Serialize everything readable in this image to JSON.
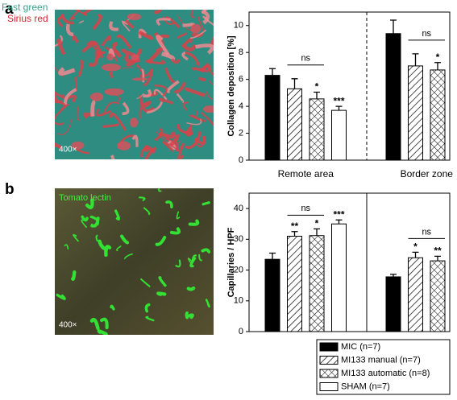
{
  "panels": [
    {
      "label": "a",
      "image_labels": [
        "Fast green",
        "Sirius red"
      ],
      "magnification": "400×"
    },
    {
      "label": "b",
      "image_labels": [
        "Tomato lectin"
      ],
      "magnification": "400×"
    }
  ],
  "chart_data": [
    {
      "type": "bar",
      "y_label": "Collagen deposition [%]",
      "categories": [
        "Remote area",
        "Border zone"
      ],
      "ylim": [
        0,
        11
      ],
      "yticks": [
        0,
        2,
        4,
        6,
        8,
        10
      ],
      "group_annotations": [
        "ns",
        "ns"
      ],
      "series": [
        {
          "color": "#000000",
          "pattern": "solid",
          "values": [
            6.3,
            9.4
          ],
          "errors": [
            0.5,
            1.0
          ],
          "significance": [
            null,
            null
          ]
        },
        {
          "color": "#000000",
          "pattern": "diagonal",
          "values": [
            5.3,
            7.0
          ],
          "errors": [
            0.75,
            0.9
          ],
          "significance": [
            null,
            null
          ]
        },
        {
          "color": "#000000",
          "pattern": "crosshatch",
          "values": [
            4.55,
            6.7
          ],
          "errors": [
            0.5,
            0.55
          ],
          "significance": [
            "*",
            "*"
          ]
        },
        {
          "color": "#000000",
          "pattern": "empty",
          "values": [
            3.7,
            null
          ],
          "errors": [
            0.3,
            null
          ],
          "significance": [
            "***",
            null
          ]
        }
      ]
    },
    {
      "type": "bar",
      "y_label": "Capillaries / HPF",
      "categories": [
        null,
        null
      ],
      "ylim": [
        0,
        45
      ],
      "yticks": [
        0,
        10,
        20,
        30,
        40
      ],
      "group_annotations": [
        "ns",
        "ns"
      ],
      "legend": "lower right",
      "series": [
        {
          "name": "MIC (n=7)",
          "color": "#000000",
          "pattern": "solid",
          "values": [
            23.5,
            17.8
          ],
          "errors": [
            2.0,
            0.8
          ],
          "significance": [
            null,
            null
          ]
        },
        {
          "name": "MI133 manual (n=7)",
          "color": "#000000",
          "pattern": "diagonal",
          "values": [
            31.0,
            24.0
          ],
          "errors": [
            1.5,
            1.8
          ],
          "significance": [
            "**",
            "*"
          ]
        },
        {
          "name": "MI133 automatic (n=8)",
          "color": "#000000",
          "pattern": "crosshatch",
          "values": [
            31.2,
            23.0
          ],
          "errors": [
            2.2,
            1.5
          ],
          "significance": [
            "*",
            "**"
          ]
        },
        {
          "name": "SHAM (n=7)",
          "color": "#000000",
          "pattern": "empty",
          "values": [
            35.0,
            null
          ],
          "errors": [
            1.3,
            null
          ],
          "significance": [
            "***",
            null
          ]
        }
      ]
    }
  ]
}
